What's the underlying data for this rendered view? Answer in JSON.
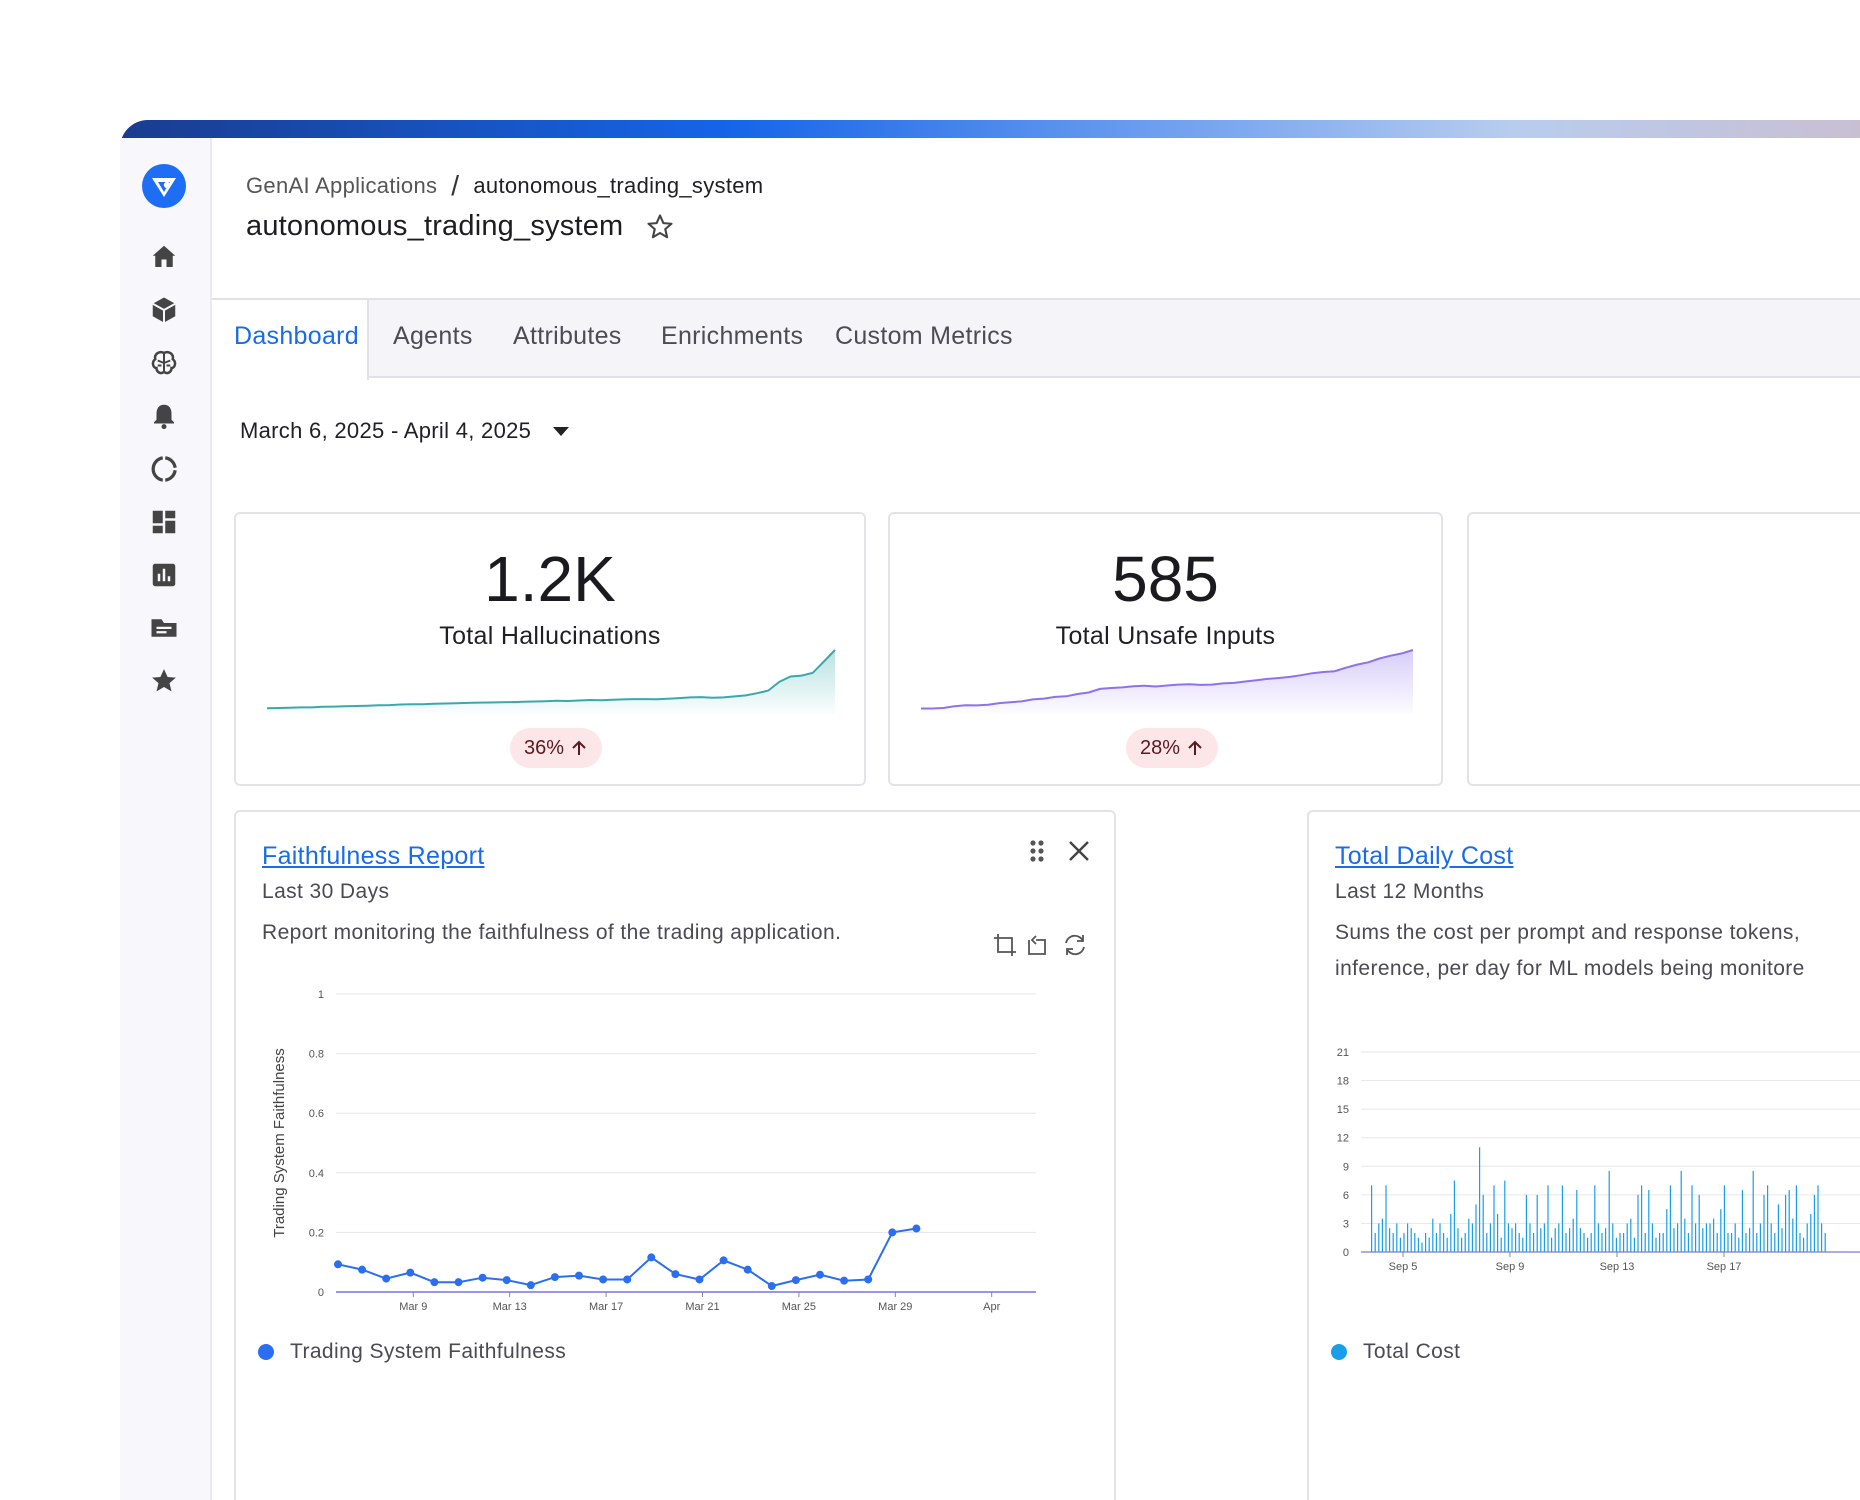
{
  "breadcrumb": {
    "parent": "GenAI Applications",
    "separator": "/",
    "current": "autonomous_trading_system"
  },
  "page_title": "autonomous_trading_system",
  "tabs": [
    {
      "label": "Dashboard",
      "active": true
    },
    {
      "label": "Agents"
    },
    {
      "label": "Attributes"
    },
    {
      "label": "Enrichments"
    },
    {
      "label": "Custom Metrics"
    }
  ],
  "date_range": "March 6, 2025 - April 4, 2025",
  "sidebar_icons": [
    "home-icon",
    "cube-icon",
    "brain-icon",
    "bell-icon",
    "progress-ring-icon",
    "dashboard-grid-icon",
    "bar-chart-icon",
    "folder-icon",
    "star-icon"
  ],
  "kpis": [
    {
      "value": "1.2K",
      "label": "Total Hallucinations",
      "change": "36%",
      "direction": "up",
      "color": "#3aa9ae",
      "trend": [
        2,
        2.3,
        2.5,
        3,
        3,
        3.6,
        3.8,
        4.3,
        4.5,
        4.9,
        5.3,
        5.6,
        6.2,
        6.6,
        6.5,
        7,
        7.4,
        7.6,
        8,
        8.4,
        8.5,
        8.7,
        9,
        9.3,
        9.6,
        10,
        10.4,
        10.2,
        10.8,
        11.3,
        11.1,
        11.6,
        12,
        12.3,
        12.4,
        12.2,
        12.8,
        13.5,
        14.3,
        14.6,
        13.8,
        14.3,
        15.4,
        16.5,
        19,
        22,
        32,
        38,
        39,
        42,
        55,
        68
      ]
    },
    {
      "value": "585",
      "label": "Total Unsafe Inputs",
      "change": "28%",
      "direction": "up",
      "color": "#8d72ec",
      "trend": [
        1,
        1,
        1.3,
        2.5,
        3.1,
        3,
        3.4,
        4.5,
        5.1,
        5.6,
        6.9,
        7.4,
        8.5,
        8.9,
        10.4,
        11.4,
        13.7,
        14.3,
        14.7,
        15.4,
        15.8,
        15.3,
        15.9,
        16.5,
        16.8,
        16.3,
        16.5,
        17.3,
        17.6,
        18.5,
        19.4,
        20.2,
        20.8,
        21.5,
        22.6,
        23.9,
        24.7,
        25.2,
        27.5,
        29.5,
        31,
        33.5,
        35.3,
        36.8,
        39
      ]
    }
  ],
  "widgets": [
    {
      "title": "Faithfulness Report",
      "subtitle": "Last 30 Days",
      "description": "Report monitoring the faithfulness of the trading application.",
      "legend": "Trading System Faithfulness",
      "color": "#2b6ff0"
    },
    {
      "title": "Total Daily Cost",
      "subtitle": "Last 12 Months",
      "description_line1": "Sums the cost per prompt and response tokens,",
      "description_line2": "inference, per day for ML models being monitore",
      "legend": "Total Cost",
      "color": "#1a9ee8"
    }
  ],
  "chart_data": [
    {
      "type": "line",
      "title": "",
      "xlabel": "",
      "ylabel": "Trading System Faithfulness",
      "ylim": [
        0,
        1
      ],
      "yticks": [
        "0",
        "0.2",
        "0.4",
        "0.6",
        "0.8",
        "1"
      ],
      "xticks": [
        "Mar 9",
        "Mar 13",
        "Mar 17",
        "Mar 21",
        "Mar 25",
        "Mar 29",
        "Apr"
      ],
      "x": [
        "Mar 6",
        "Mar 7",
        "Mar 8",
        "Mar 9",
        "Mar 10",
        "Mar 11",
        "Mar 12",
        "Mar 13",
        "Mar 14",
        "Mar 15",
        "Mar 16",
        "Mar 17",
        "Mar 18",
        "Mar 19",
        "Mar 20",
        "Mar 21",
        "Mar 22",
        "Mar 23",
        "Mar 24",
        "Mar 25",
        "Mar 26",
        "Mar 27",
        "Mar 28",
        "Mar 29",
        "Mar 30"
      ],
      "series": [
        {
          "name": "Trading System Faithfulness",
          "values": [
            0.093,
            0.075,
            0.045,
            0.065,
            0.033,
            0.033,
            0.048,
            0.04,
            0.023,
            0.05,
            0.055,
            0.042,
            0.042,
            0.116,
            0.06,
            0.042,
            0.106,
            0.075,
            0.02,
            0.04,
            0.058,
            0.038,
            0.042,
            0.2,
            0.213
          ]
        }
      ]
    },
    {
      "type": "bar",
      "title": "",
      "xlabel": "",
      "ylabel": "",
      "ylim": [
        0,
        21
      ],
      "yticks": [
        "0",
        "3",
        "6",
        "9",
        "12",
        "15",
        "18",
        "21"
      ],
      "xticks": [
        "Sep 5",
        "Sep 9",
        "Sep 13",
        "Sep 17"
      ],
      "series": [
        {
          "name": "Total Cost",
          "values": [
            7,
            2,
            3,
            3.5,
            7,
            2.5,
            2,
            3,
            1.5,
            2,
            3,
            2.5,
            2,
            1.5,
            1,
            2,
            1.5,
            3.5,
            2,
            3,
            2,
            1.5,
            4,
            7.5,
            2.5,
            1.5,
            2,
            3.5,
            3,
            5,
            11,
            6,
            2,
            3,
            7,
            4,
            1.5,
            7.5,
            3,
            2.5,
            3,
            2,
            1.5,
            6,
            3,
            2,
            6,
            2.5,
            3,
            7,
            1.5,
            2.5,
            3,
            7,
            2,
            2.5,
            3.5,
            6.5,
            2.5,
            2,
            1.5,
            2,
            7,
            3,
            2,
            2.5,
            8.5,
            3,
            1.5,
            2,
            2,
            3,
            3.5,
            1.5,
            6,
            7,
            2,
            6.5,
            3,
            1.5,
            2,
            2,
            4.5,
            7,
            2.5,
            3,
            8.5,
            3.5,
            2,
            7,
            3,
            6,
            2.5,
            3,
            3,
            3.5,
            2,
            4.5,
            7,
            2,
            2,
            3,
            1.5,
            6.5,
            2,
            2.5,
            8.5,
            2,
            3,
            6,
            7,
            3,
            2,
            5,
            2.5,
            6,
            6.5,
            3.5,
            7,
            2,
            1.5,
            3,
            4,
            6,
            7,
            3,
            2
          ]
        }
      ]
    }
  ]
}
